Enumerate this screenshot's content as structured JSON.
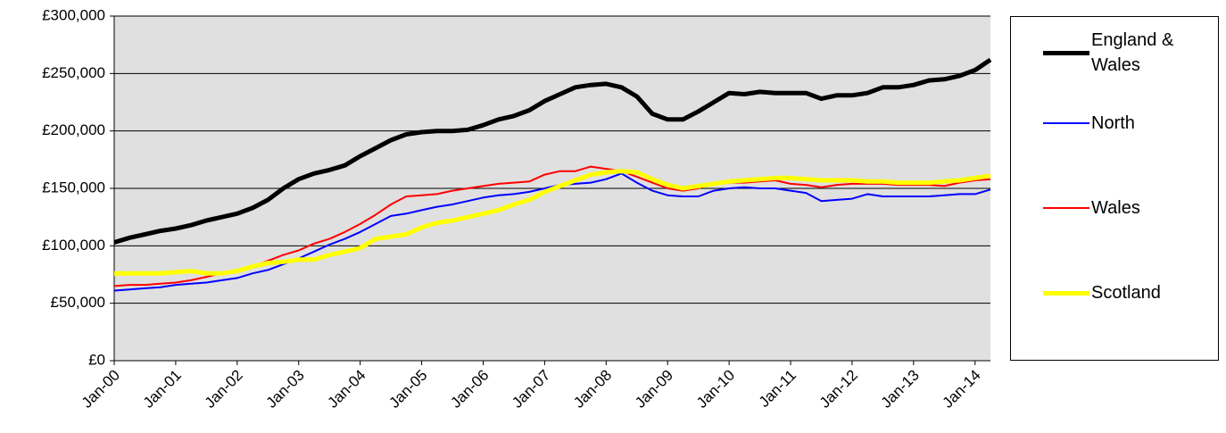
{
  "chart_data": {
    "type": "line",
    "categories": [
      "Jan-00",
      null,
      null,
      null,
      "Jan-01",
      null,
      null,
      null,
      "Jan-02",
      null,
      null,
      null,
      "Jan-03",
      null,
      null,
      null,
      "Jan-04",
      null,
      null,
      null,
      "Jan-05",
      null,
      null,
      null,
      "Jan-06",
      null,
      null,
      null,
      "Jan-07",
      null,
      null,
      null,
      "Jan-08",
      null,
      null,
      null,
      "Jan-09",
      null,
      null,
      null,
      "Jan-10",
      null,
      null,
      null,
      "Jan-11",
      null,
      null,
      null,
      "Jan-12",
      null,
      null,
      null,
      "Jan-13",
      null,
      null,
      null,
      "Jan-14",
      null
    ],
    "series": [
      {
        "name": "England & Wales",
        "color": "#000000",
        "values": [
          103000,
          107000,
          110000,
          113000,
          115000,
          118000,
          122000,
          125000,
          128000,
          133000,
          140000,
          150000,
          158000,
          163000,
          166000,
          170000,
          178000,
          185000,
          192000,
          197000,
          199000,
          200000,
          200000,
          201000,
          205000,
          210000,
          213000,
          218000,
          226000,
          232000,
          238000,
          240000,
          241000,
          238000,
          230000,
          215000,
          210000,
          210000,
          217000,
          225000,
          233000,
          232000,
          234000,
          233000,
          233000,
          233000,
          228000,
          231000,
          231000,
          233000,
          238000,
          238000,
          240000,
          244000,
          245000,
          248000,
          253000,
          262000
        ]
      },
      {
        "name": "North",
        "color": "#0000ff",
        "values": [
          61000,
          62000,
          63000,
          64000,
          66000,
          67000,
          68000,
          70000,
          72000,
          76000,
          79000,
          84000,
          89000,
          95000,
          101000,
          106000,
          112000,
          119000,
          126000,
          128000,
          131000,
          134000,
          136000,
          139000,
          142000,
          144000,
          145000,
          147000,
          150000,
          153000,
          154000,
          155000,
          158000,
          163000,
          155000,
          148000,
          144000,
          143000,
          143000,
          148000,
          150000,
          151000,
          150000,
          150000,
          148000,
          146000,
          139000,
          140000,
          141000,
          145000,
          143000,
          143000,
          143000,
          143000,
          144000,
          145000,
          145000,
          149000
        ]
      },
      {
        "name": "Wales",
        "color": "#ff0000",
        "values": [
          65000,
          66000,
          66000,
          67000,
          68000,
          70000,
          73000,
          76000,
          78000,
          82000,
          87000,
          92000,
          96000,
          102000,
          106000,
          112000,
          119000,
          127000,
          136000,
          143000,
          144000,
          145000,
          148000,
          150000,
          152000,
          154000,
          155000,
          156000,
          162000,
          165000,
          165000,
          169000,
          167000,
          165000,
          160000,
          155000,
          150000,
          148000,
          150000,
          155000,
          155000,
          155000,
          156000,
          157000,
          154000,
          153000,
          151000,
          153000,
          154000,
          154000,
          154000,
          153000,
          153000,
          153000,
          152000,
          155000,
          157000,
          158000
        ]
      },
      {
        "name": "Scotland",
        "color": "#ffff00",
        "values": [
          76000,
          76000,
          76000,
          76000,
          77000,
          78000,
          76000,
          76000,
          78000,
          82000,
          85000,
          86000,
          88000,
          88000,
          92000,
          95000,
          98000,
          106000,
          108000,
          110000,
          116000,
          120000,
          122000,
          125000,
          128000,
          131000,
          136000,
          140000,
          147000,
          152000,
          157000,
          162000,
          164000,
          165000,
          164000,
          158000,
          153000,
          150000,
          152000,
          154000,
          156000,
          157000,
          158000,
          159000,
          159000,
          158000,
          157000,
          157000,
          157000,
          156000,
          156000,
          155000,
          155000,
          155000,
          156000,
          157000,
          159000,
          161000
        ]
      }
    ],
    "ylim": [
      0,
      300000
    ],
    "yticks": [
      {
        "value": 0,
        "label": "£0"
      },
      {
        "value": 50000,
        "label": "£50,000"
      },
      {
        "value": 100000,
        "label": "£100,000"
      },
      {
        "value": 150000,
        "label": "£150,000"
      },
      {
        "value": 200000,
        "label": "£200,000"
      },
      {
        "value": 250000,
        "label": "£250,000"
      },
      {
        "value": 300000,
        "label": "£300,000"
      }
    ],
    "grid": true
  }
}
